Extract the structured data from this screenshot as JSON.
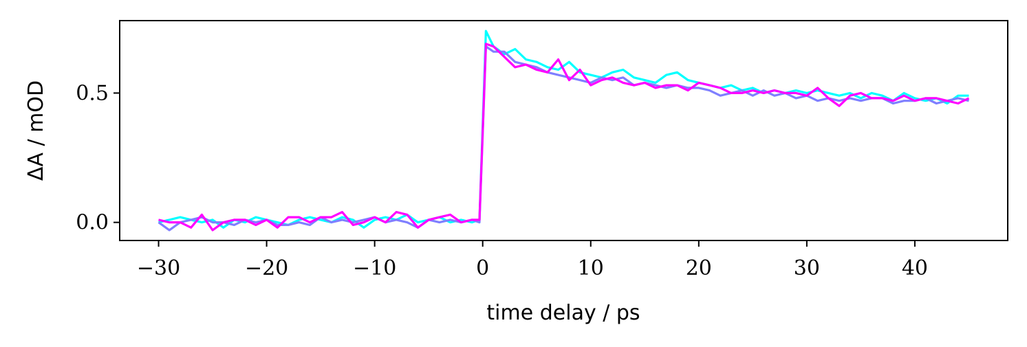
{
  "chart_data": {
    "type": "line",
    "title": "",
    "xlabel": "time delay / ps",
    "ylabel": "ΔA / mOD",
    "xlim": [
      -33.6,
      48.6
    ],
    "ylim": [
      -0.07,
      0.78
    ],
    "xticks": [
      -30,
      -20,
      -10,
      0,
      10,
      20,
      30,
      40
    ],
    "xtick_labels": [
      "−30",
      "−20",
      "−10",
      "0",
      "10",
      "20",
      "30",
      "40"
    ],
    "yticks": [
      0.0,
      0.5
    ],
    "ytick_labels": [
      "0.0",
      "0.5"
    ],
    "grid": false,
    "legend": false,
    "series": [
      {
        "color": "#00ffff",
        "x": [
          -30,
          -29,
          -28,
          -27,
          -26,
          -25,
          -24,
          -23,
          -22,
          -21,
          -20,
          -19,
          -18,
          -17,
          -16,
          -15,
          -14,
          -13,
          -12,
          -11,
          -10,
          -9,
          -8,
          -7,
          -6,
          -5,
          -4,
          -3,
          -2,
          -1,
          -0.3,
          0.3,
          1,
          2,
          3,
          4,
          5,
          6,
          7,
          8,
          9,
          10,
          11,
          12,
          13,
          14,
          15,
          16,
          17,
          18,
          19,
          20,
          21,
          22,
          23,
          24,
          25,
          26,
          27,
          28,
          29,
          30,
          31,
          32,
          33,
          34,
          35,
          36,
          37,
          38,
          39,
          40,
          41,
          42,
          43,
          44,
          45
        ],
        "y": [
          0.0,
          0.01,
          0.02,
          0.01,
          0.0,
          0.01,
          -0.02,
          0.01,
          0.0,
          0.02,
          0.01,
          0.0,
          -0.01,
          0.01,
          0.02,
          0.01,
          0.0,
          0.02,
          0.01,
          -0.02,
          0.01,
          0.02,
          0.01,
          0.03,
          0.0,
          0.01,
          0.02,
          0.0,
          0.01,
          0.0,
          0.01,
          0.74,
          0.68,
          0.65,
          0.67,
          0.63,
          0.62,
          0.6,
          0.59,
          0.62,
          0.58,
          0.57,
          0.56,
          0.58,
          0.59,
          0.56,
          0.55,
          0.54,
          0.57,
          0.58,
          0.55,
          0.54,
          0.53,
          0.52,
          0.53,
          0.51,
          0.52,
          0.5,
          0.51,
          0.5,
          0.51,
          0.5,
          0.51,
          0.5,
          0.49,
          0.5,
          0.48,
          0.5,
          0.49,
          0.47,
          0.5,
          0.48,
          0.47,
          0.48,
          0.46,
          0.49,
          0.49
        ]
      },
      {
        "color": "#7f7fff",
        "x": [
          -30,
          -29,
          -28,
          -27,
          -26,
          -25,
          -24,
          -23,
          -22,
          -21,
          -20,
          -19,
          -18,
          -17,
          -16,
          -15,
          -14,
          -13,
          -12,
          -11,
          -10,
          -9,
          -8,
          -7,
          -6,
          -5,
          -4,
          -3,
          -2,
          -1,
          -0.3,
          0.3,
          1,
          2,
          3,
          4,
          5,
          6,
          7,
          8,
          9,
          10,
          11,
          12,
          13,
          14,
          15,
          16,
          17,
          18,
          19,
          20,
          21,
          22,
          23,
          24,
          25,
          26,
          27,
          28,
          29,
          30,
          31,
          32,
          33,
          34,
          35,
          36,
          37,
          38,
          39,
          40,
          41,
          42,
          43,
          44,
          45
        ],
        "y": [
          0.0,
          -0.03,
          0.0,
          0.01,
          0.02,
          0.0,
          0.0,
          -0.01,
          0.01,
          0.0,
          0.01,
          -0.01,
          -0.01,
          0.0,
          -0.01,
          0.02,
          0.0,
          0.01,
          0.0,
          0.01,
          0.02,
          0.0,
          0.01,
          0.0,
          -0.02,
          0.01,
          0.0,
          0.01,
          0.0,
          0.01,
          0.0,
          0.68,
          0.66,
          0.66,
          0.62,
          0.61,
          0.6,
          0.58,
          0.57,
          0.56,
          0.55,
          0.54,
          0.56,
          0.55,
          0.56,
          0.53,
          0.54,
          0.53,
          0.52,
          0.53,
          0.52,
          0.52,
          0.51,
          0.49,
          0.5,
          0.51,
          0.49,
          0.51,
          0.49,
          0.5,
          0.48,
          0.49,
          0.47,
          0.48,
          0.47,
          0.48,
          0.47,
          0.48,
          0.48,
          0.46,
          0.47,
          0.47,
          0.48,
          0.46,
          0.47,
          0.48,
          0.47
        ]
      },
      {
        "color": "#ff00ff",
        "x": [
          -30,
          -29,
          -28,
          -27,
          -26,
          -25,
          -24,
          -23,
          -22,
          -21,
          -20,
          -19,
          -18,
          -17,
          -16,
          -15,
          -14,
          -13,
          -12,
          -11,
          -10,
          -9,
          -8,
          -7,
          -6,
          -5,
          -4,
          -3,
          -2,
          -1,
          -0.3,
          0.3,
          1,
          2,
          3,
          4,
          5,
          6,
          7,
          8,
          9,
          10,
          11,
          12,
          13,
          14,
          15,
          16,
          17,
          18,
          19,
          20,
          21,
          22,
          23,
          24,
          25,
          26,
          27,
          28,
          29,
          30,
          31,
          32,
          33,
          34,
          35,
          36,
          37,
          38,
          39,
          40,
          41,
          42,
          43,
          44,
          45
        ],
        "y": [
          0.01,
          0.0,
          0.0,
          -0.02,
          0.03,
          -0.03,
          0.0,
          0.01,
          0.01,
          -0.01,
          0.01,
          -0.02,
          0.02,
          0.02,
          0.0,
          0.02,
          0.02,
          0.04,
          -0.01,
          0.0,
          0.02,
          0.0,
          0.04,
          0.03,
          -0.02,
          0.01,
          0.02,
          0.03,
          0.0,
          0.01,
          0.01,
          0.69,
          0.68,
          0.64,
          0.6,
          0.61,
          0.59,
          0.58,
          0.63,
          0.55,
          0.59,
          0.53,
          0.55,
          0.56,
          0.54,
          0.53,
          0.54,
          0.52,
          0.53,
          0.53,
          0.51,
          0.54,
          0.53,
          0.52,
          0.5,
          0.5,
          0.51,
          0.5,
          0.51,
          0.5,
          0.5,
          0.49,
          0.52,
          0.48,
          0.45,
          0.49,
          0.5,
          0.48,
          0.48,
          0.47,
          0.49,
          0.47,
          0.48,
          0.48,
          0.47,
          0.46,
          0.48
        ]
      }
    ]
  }
}
